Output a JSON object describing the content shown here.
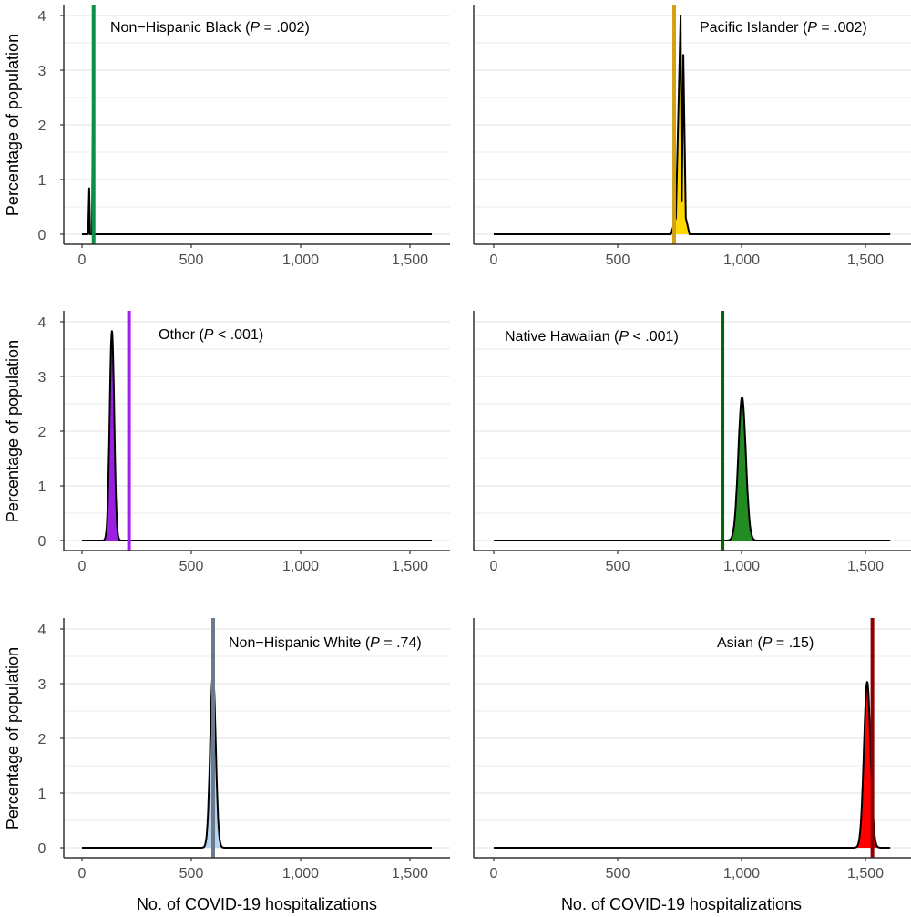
{
  "chart_data": [
    {
      "type": "area",
      "label": "Non−Hispanic Black",
      "p_prefix": " (",
      "p_symbol": "P",
      "p_text": " = .002)",
      "observed": 53,
      "line_color": "#0c8f47",
      "fill_color": "#0c8f47",
      "points": [
        [
          0,
          0
        ],
        [
          28,
          0
        ],
        [
          33,
          0.84
        ],
        [
          37,
          0
        ],
        [
          46,
          0
        ],
        [
          50,
          2.28
        ],
        [
          55,
          0
        ],
        [
          1600,
          0
        ]
      ]
    },
    {
      "type": "area",
      "label": "Pacific Islander",
      "p_prefix": " (",
      "p_symbol": "P",
      "p_text": " = .002)",
      "observed": 728,
      "line_color": "#d4a017",
      "fill_color": "#ffd700",
      "points": [
        [
          0,
          0
        ],
        [
          715,
          0
        ],
        [
          735,
          0.3
        ],
        [
          754,
          4.0
        ],
        [
          759,
          0.6
        ],
        [
          765,
          3.28
        ],
        [
          775,
          0.3
        ],
        [
          790,
          0
        ],
        [
          1600,
          0
        ]
      ]
    },
    {
      "type": "area",
      "label": "Other",
      "p_prefix": " (",
      "p_symbol": "P",
      "p_text": " < .001)",
      "observed": 215,
      "line_color": "#a020f0",
      "fill_color": "#9a1fe0",
      "mode": 137,
      "peak": 3.83,
      "sd": 10.4
    },
    {
      "type": "area",
      "label": "Native Hawaiian",
      "p_prefix": " (",
      "p_symbol": "P",
      "p_text": " < .001)",
      "observed": 923,
      "line_color": "#006400",
      "fill_color": "#228b22",
      "mode": 1002,
      "peak": 2.62,
      "sd": 15.2
    },
    {
      "type": "area",
      "label": "Non−Hispanic White",
      "p_prefix": " (",
      "p_symbol": "P",
      "p_text": " = .74)",
      "observed": 600,
      "line_color": "#6c7b8b",
      "fill_color": "#b9d3ee",
      "mode": 599,
      "peak": 3.17,
      "sd": 12.6
    },
    {
      "type": "area",
      "label": "Asian",
      "p_prefix": " (",
      "p_symbol": "P",
      "p_text": " = .15)",
      "observed": 1528,
      "line_color": "#8b0000",
      "fill_color": "#ff0000",
      "mode": 1507,
      "peak": 3.03,
      "sd": 13.2
    }
  ],
  "axes": {
    "xlabel": "No. of COVID-19 hospitalizations",
    "ylabel": "Percentage of population",
    "xlim": [
      0,
      1600
    ],
    "ylim": [
      0,
      4
    ],
    "x_ticks": [
      {
        "v": 0,
        "label": "0"
      },
      {
        "v": 500,
        "label": "500"
      },
      {
        "v": 1000,
        "label": "1,000"
      },
      {
        "v": 1500,
        "label": "1,500"
      }
    ],
    "y_ticks": [
      {
        "v": 0,
        "label": "0"
      },
      {
        "v": 1,
        "label": "1"
      },
      {
        "v": 2,
        "label": "2"
      },
      {
        "v": 3,
        "label": "3"
      },
      {
        "v": 4,
        "label": "4"
      }
    ],
    "grid": true
  }
}
